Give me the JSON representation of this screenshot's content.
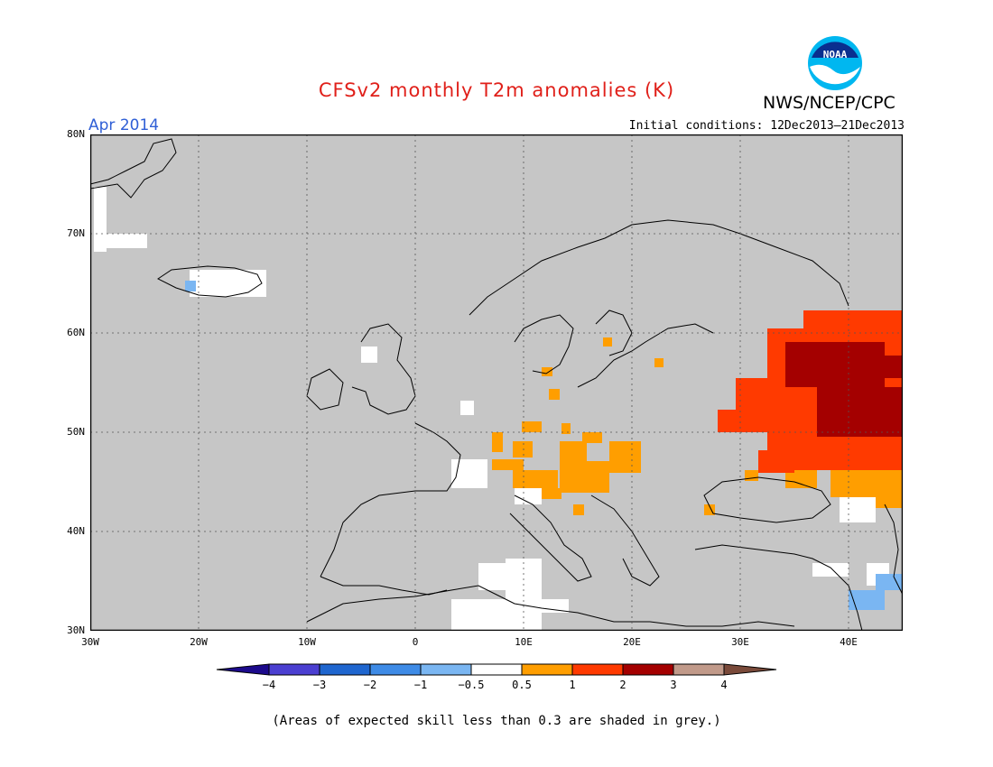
{
  "header": {
    "title": "CFSv2 monthly T2m anomalies (K)",
    "org": "NWS/NCEP/CPC",
    "month": "Apr 2014",
    "initial_conditions": "Initial conditions: 12Dec2013–21Dec2013"
  },
  "logo": {
    "text": "NOAA"
  },
  "axes": {
    "y_ticks": [
      "80N",
      "70N",
      "60N",
      "50N",
      "40N",
      "30N"
    ],
    "x_ticks": [
      "30W",
      "20W",
      "10W",
      "0",
      "10E",
      "20E",
      "30E",
      "40E"
    ]
  },
  "colorbar": {
    "labels": [
      "−4",
      "−3",
      "−2",
      "−1",
      "−0.5",
      "0.5",
      "1",
      "2",
      "3",
      "4"
    ],
    "colors": [
      "#1c0a8c",
      "#4b3fd1",
      "#1f66cf",
      "#3e8be6",
      "#7ab6f2",
      "#ffffff",
      "#ff9e00",
      "#ff3a00",
      "#a40000",
      "#c19a8a",
      "#7a4a3a"
    ]
  },
  "colors": {
    "grey": "#c6c6c6",
    "title_red": "#e0201a",
    "month_blue": "#2f5fd6"
  },
  "footer": "(Areas of expected skill less than 0.3 are shaded in grey.)"
}
